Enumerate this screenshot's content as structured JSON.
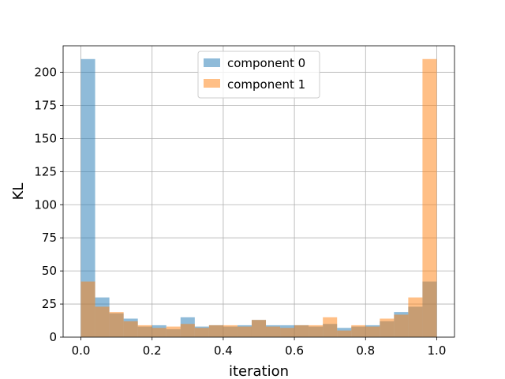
{
  "chart_data": {
    "type": "bar",
    "subtype": "overlaid-histogram",
    "xlabel": "iteration",
    "ylabel": "KL",
    "xlim": [
      -0.05,
      1.05
    ],
    "ylim": [
      0,
      220
    ],
    "xticks": [
      "0.0",
      "0.2",
      "0.4",
      "0.6",
      "0.8",
      "1.0"
    ],
    "xtick_values": [
      0.0,
      0.2,
      0.4,
      0.6,
      0.8,
      1.0
    ],
    "yticks": [
      "0",
      "25",
      "50",
      "75",
      "100",
      "125",
      "150",
      "175",
      "200"
    ],
    "ytick_values": [
      0,
      25,
      50,
      75,
      100,
      125,
      150,
      175,
      200
    ],
    "bin_range": [
      0.0,
      1.0
    ],
    "bins": 25,
    "grid": true,
    "legend_position": "top-center",
    "series": [
      {
        "name": "component 0",
        "color": "#1f77b4",
        "alpha": 0.5,
        "values": [
          210,
          30,
          18,
          14,
          8,
          9,
          6,
          15,
          8,
          9,
          8,
          9,
          13,
          9,
          9,
          9,
          8,
          10,
          7,
          8,
          9,
          12,
          19,
          23,
          42
        ]
      },
      {
        "name": "component 1",
        "color": "#ff7f0e",
        "alpha": 0.5,
        "values": [
          42,
          23,
          19,
          12,
          9,
          7,
          8,
          10,
          7,
          9,
          9,
          8,
          13,
          8,
          7,
          9,
          9,
          15,
          5,
          9,
          8,
          14,
          17,
          30,
          210
        ]
      }
    ]
  }
}
